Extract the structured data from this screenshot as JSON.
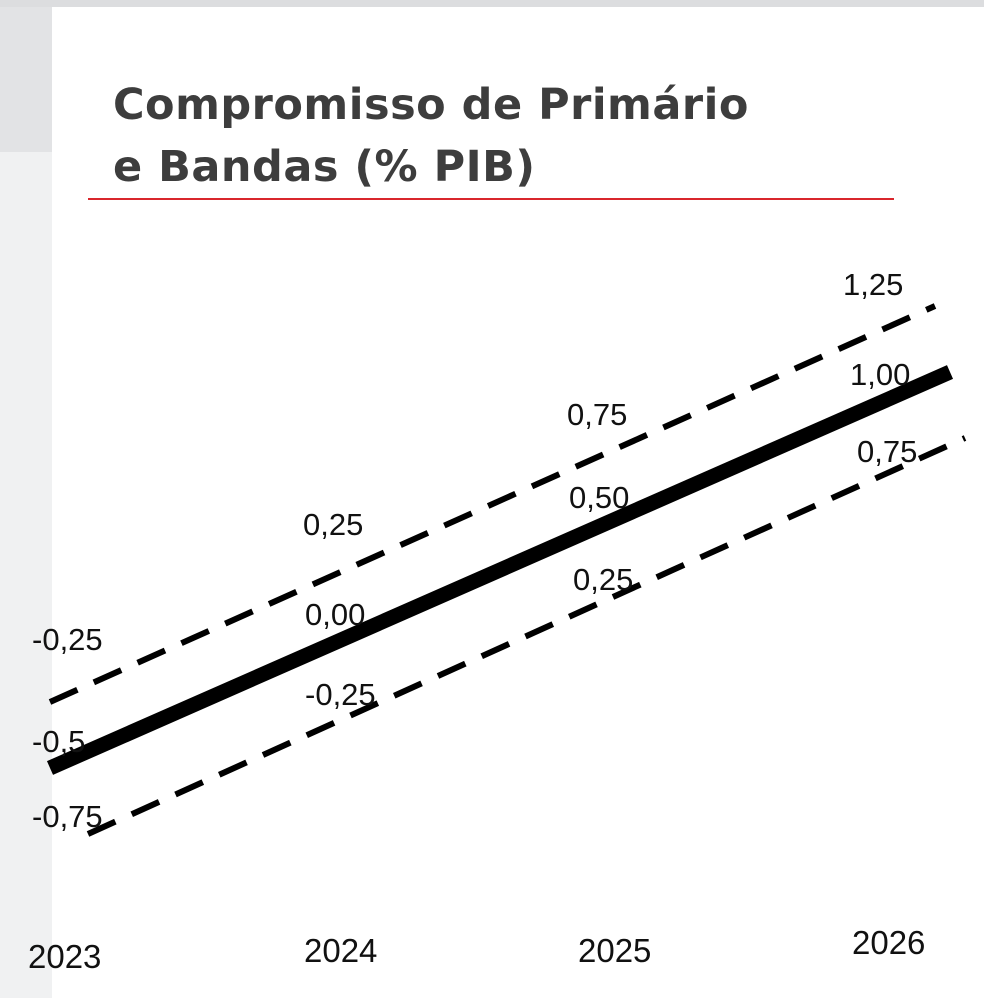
{
  "chart_data": {
    "type": "line",
    "title": [
      "Compromisso de Primário",
      "e Bandas (% PIB)"
    ],
    "categories": [
      "2023",
      "2024",
      "2025",
      "2026"
    ],
    "series": [
      {
        "values": [
          -0.25,
          0.25,
          0.75,
          1.25
        ],
        "labels": [
          "-0,25",
          "0,25",
          "0,75",
          "1,25"
        ],
        "style": "dashed",
        "color": "#000000"
      },
      {
        "values": [
          -0.5,
          0.0,
          0.5,
          1.0
        ],
        "labels": [
          "-0,5",
          "0,00",
          "0,50",
          "1,00"
        ],
        "style": "solid-thick",
        "color": "#000000"
      },
      {
        "values": [
          -0.75,
          -0.25,
          0.25,
          0.75
        ],
        "labels": [
          "-0,75",
          "-0,25",
          "0,25",
          "0,75"
        ],
        "style": "dashed",
        "color": "#000000"
      }
    ],
    "xlabel": "",
    "ylabel": "",
    "grid": false,
    "accent_color": "#d9262c"
  }
}
